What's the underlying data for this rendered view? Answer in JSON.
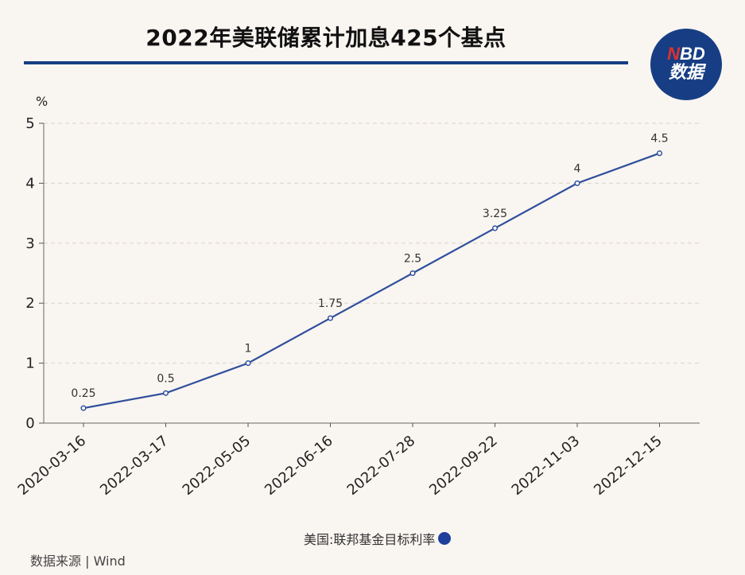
{
  "title": "2022年美联储累计加息425个基点",
  "logo": {
    "line1_n": "N",
    "line1_rest": "BD",
    "line2": "数据"
  },
  "chart_data": {
    "type": "line",
    "unit": "%",
    "categories": [
      "2020-03-16",
      "2022-03-17",
      "2022-05-05",
      "2022-06-16",
      "2022-07-28",
      "2022-09-22",
      "2022-11-03",
      "2022-12-15"
    ],
    "series": [
      {
        "name": "美国:联邦基金目标利率",
        "values": [
          0.25,
          0.5,
          1,
          1.75,
          2.5,
          3.25,
          4,
          4.5
        ]
      }
    ],
    "data_labels": [
      "0.25",
      "0.5",
      "1",
      "1.75",
      "2.5",
      "3.25",
      "4",
      "4.5"
    ],
    "yticks": [
      "0",
      "1",
      "2",
      "3",
      "4",
      "5"
    ],
    "ylim": [
      0,
      5
    ],
    "grid": true,
    "legend_position": "bottom-center",
    "line_color": "#2f4f9c",
    "legend_color": "#1f3f9c"
  },
  "source": "数据来源 | Wind"
}
